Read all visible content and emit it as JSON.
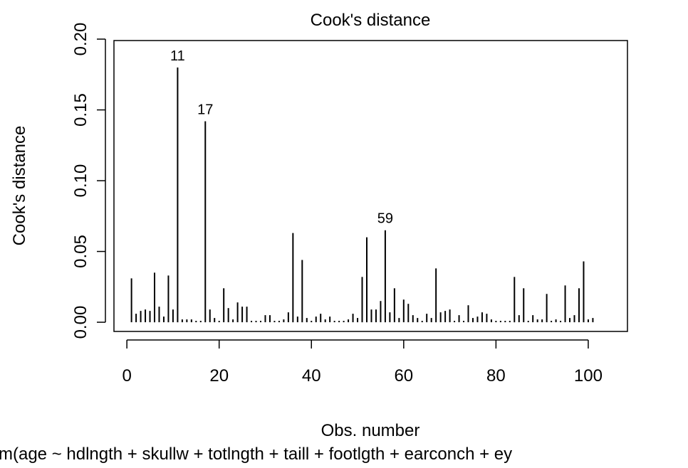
{
  "chart_data": {
    "type": "needle",
    "title": "Cook's distance",
    "xlabel": "Obs. number",
    "ylabel": "Cook's distance",
    "subtitle": "m(age ~ hdlngth + skullw + totlngth + taill + footlgth + earconch + ey",
    "color": "#000000",
    "x": [
      1,
      2,
      3,
      4,
      5,
      6,
      7,
      8,
      9,
      10,
      11,
      12,
      13,
      14,
      15,
      16,
      17,
      18,
      19,
      20,
      21,
      22,
      23,
      24,
      25,
      26,
      27,
      28,
      29,
      30,
      31,
      32,
      33,
      34,
      35,
      36,
      37,
      38,
      39,
      40,
      41,
      42,
      43,
      44,
      45,
      46,
      47,
      48,
      49,
      50,
      51,
      52,
      53,
      54,
      55,
      56,
      57,
      58,
      59,
      60,
      61,
      62,
      63,
      64,
      65,
      66,
      67,
      68,
      69,
      70,
      71,
      72,
      73,
      74,
      75,
      76,
      77,
      78,
      79,
      80,
      81,
      82,
      83,
      84,
      85,
      86,
      87,
      88,
      89,
      90,
      91,
      92,
      93,
      94,
      95,
      96,
      97,
      98,
      99,
      100,
      101
    ],
    "values": [
      0.031,
      0.006,
      0.008,
      0.009,
      0.008,
      0.035,
      0.011,
      0.004,
      0.033,
      0.009,
      0.18,
      0.002,
      0.002,
      0.002,
      0.001,
      0.001,
      0.142,
      0.009,
      0.003,
      0.001,
      0.024,
      0.01,
      0.002,
      0.014,
      0.011,
      0.011,
      0.001,
      0.001,
      0.001,
      0.005,
      0.005,
      0.001,
      0.001,
      0.002,
      0.007,
      0.063,
      0.004,
      0.044,
      0.003,
      0.001,
      0.004,
      0.006,
      0.002,
      0.004,
      0.001,
      0.001,
      0.001,
      0.002,
      0.006,
      0.003,
      0.032,
      0.06,
      0.009,
      0.009,
      0.015,
      0.065,
      0.007,
      0.024,
      0.003,
      0.016,
      0.013,
      0.005,
      0.003,
      0.001,
      0.006,
      0.003,
      0.038,
      0.007,
      0.008,
      0.009,
      0.001,
      0.005,
      0.001,
      0.012,
      0.003,
      0.004,
      0.007,
      0.006,
      0.002,
      0.001,
      0.001,
      0.001,
      0.001,
      0.032,
      0.005,
      0.024,
      0.001,
      0.005,
      0.002,
      0.002,
      0.02,
      0.001,
      0.002,
      0.001,
      0.026,
      0.003,
      0.005,
      0.024,
      0.043,
      0.002,
      0.003
    ],
    "point_labels": [
      {
        "text": "11",
        "x": 11
      },
      {
        "text": "17",
        "x": 17
      },
      {
        "text": "59",
        "x": 56
      }
    ],
    "xlim": [
      -2.8,
      108.5
    ],
    "ylim": [
      -0.0065,
      0.199
    ],
    "xticks": [
      0,
      20,
      40,
      60,
      80,
      100
    ],
    "yticks": [
      {
        "value": 0,
        "label": "0.00"
      },
      {
        "value": 0.05,
        "label": "0.05"
      },
      {
        "value": 0.1,
        "label": "0.10"
      },
      {
        "value": 0.15,
        "label": "0.15"
      },
      {
        "value": 0.2,
        "label": "0.20"
      }
    ]
  }
}
